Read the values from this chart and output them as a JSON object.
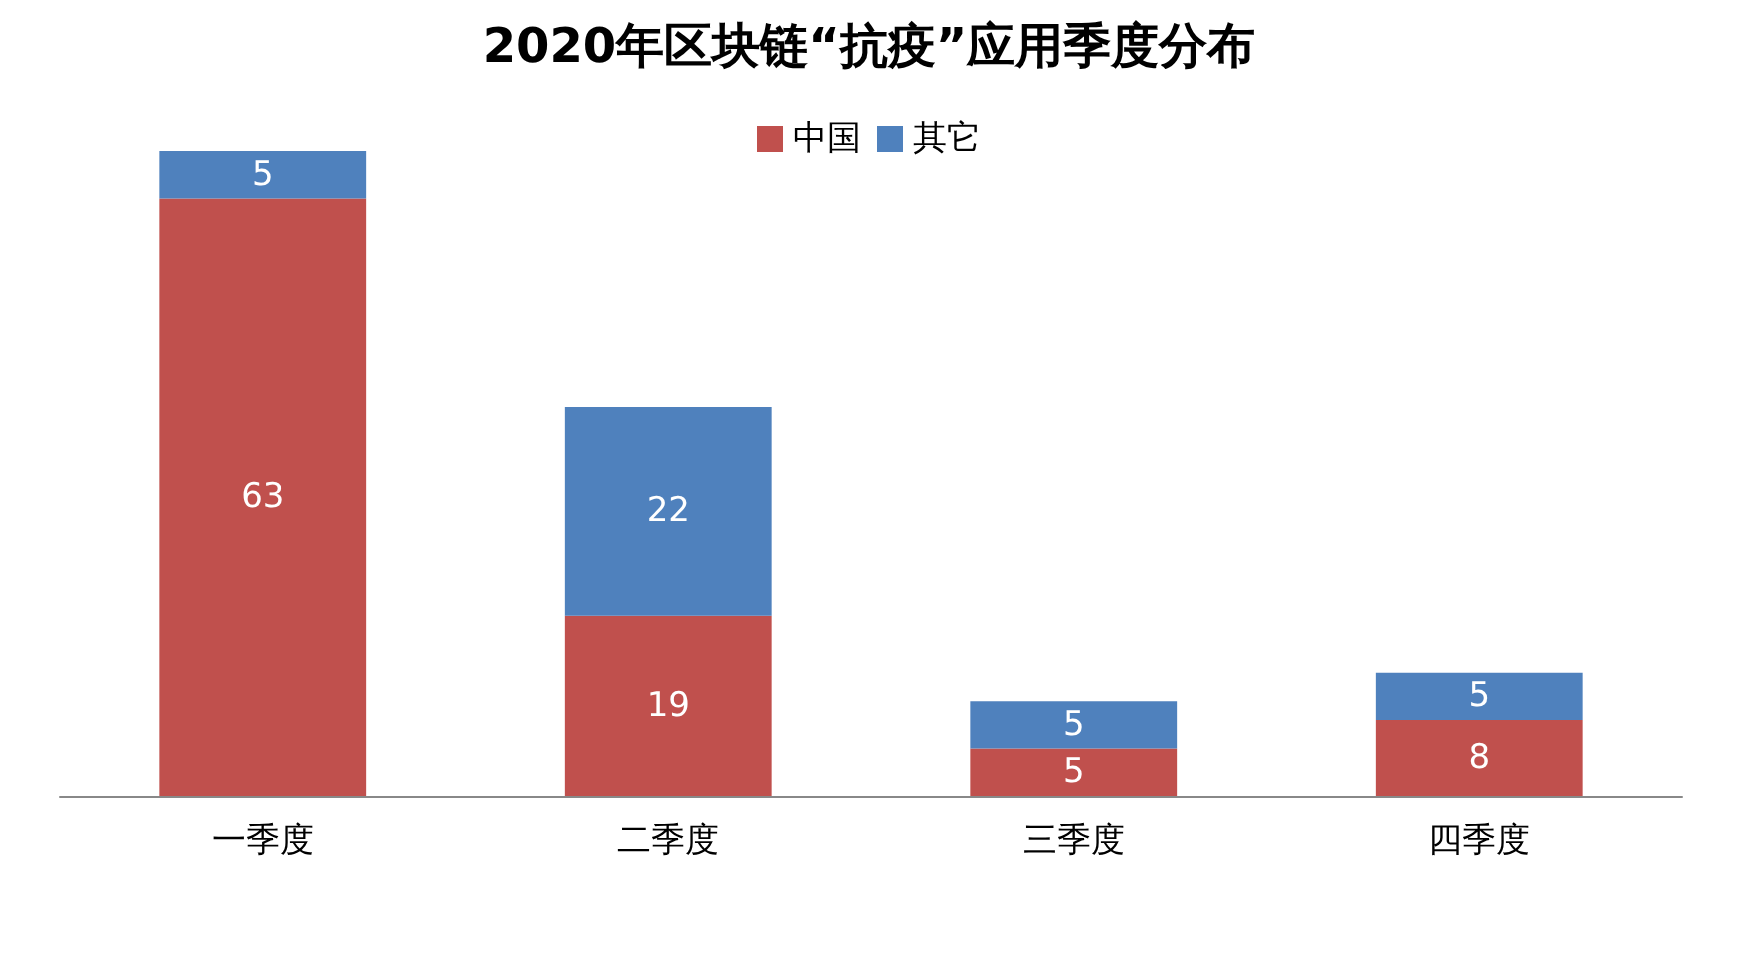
{
  "chart_data": {
    "type": "bar",
    "title": "2020年区块链“抗疫”应用季度分布",
    "categories": [
      "一季度",
      "二季度",
      "三季度",
      "四季度"
    ],
    "stacked": true,
    "series": [
      {
        "name": "中国",
        "color": "#c0504d",
        "values": [
          63,
          19,
          5,
          8
        ]
      },
      {
        "name": "其它",
        "color": "#4f81bd",
        "values": [
          5,
          22,
          5,
          5
        ]
      }
    ],
    "data_labels": true,
    "legend": "top",
    "tick_labels": "x",
    "grid": false
  }
}
